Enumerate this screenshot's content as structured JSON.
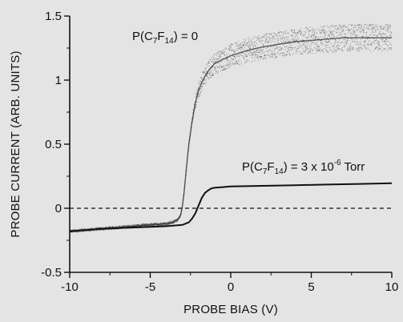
{
  "chart_data": {
    "type": "line",
    "xlabel": "PROBE BIAS (V)",
    "ylabel": "PROBE CURRENT (ARB. UNITS)",
    "xlim": [
      -10,
      10
    ],
    "ylim": [
      -0.5,
      1.5
    ],
    "x_ticks": [
      "-10",
      "-5",
      "0",
      "5",
      "10"
    ],
    "y_ticks": [
      "-0.5",
      "0",
      "0.5",
      "1",
      "1.5"
    ],
    "reference_line": {
      "y": 0,
      "style": "dashed"
    },
    "series": [
      {
        "name": "P(C7F14) = 0",
        "noisy": true,
        "x": [
          -10,
          -9,
          -8,
          -7,
          -6,
          -5,
          -4,
          -3.6,
          -3.3,
          -3.1,
          -3.0,
          -2.9,
          -2.8,
          -2.7,
          -2.6,
          -2.4,
          -2.2,
          -2.0,
          -1.8,
          -1.6,
          -1.4,
          -1.2,
          -1.0,
          -0.5,
          0,
          1,
          2,
          3,
          4,
          5,
          6,
          7,
          8,
          9,
          10
        ],
        "y": [
          -0.18,
          -0.17,
          -0.16,
          -0.15,
          -0.14,
          -0.13,
          -0.12,
          -0.11,
          -0.09,
          -0.05,
          0.02,
          0.12,
          0.25,
          0.38,
          0.5,
          0.68,
          0.82,
          0.92,
          0.98,
          1.03,
          1.07,
          1.1,
          1.13,
          1.16,
          1.19,
          1.23,
          1.26,
          1.28,
          1.3,
          1.31,
          1.32,
          1.33,
          1.33,
          1.33,
          1.33
        ]
      },
      {
        "name": "P(C7F14) = 3 x 10-6 Torr",
        "noisy": false,
        "x": [
          -10,
          -9,
          -8,
          -7,
          -6,
          -5,
          -4,
          -3,
          -2.6,
          -2.4,
          -2.2,
          -2.0,
          -1.8,
          -1.6,
          -1.4,
          -1.2,
          -1.0,
          -0.5,
          0,
          2,
          4,
          6,
          8,
          10
        ],
        "y": [
          -0.18,
          -0.17,
          -0.16,
          -0.155,
          -0.15,
          -0.145,
          -0.14,
          -0.13,
          -0.11,
          -0.08,
          -0.04,
          0.02,
          0.08,
          0.12,
          0.14,
          0.155,
          0.16,
          0.165,
          0.17,
          0.175,
          0.18,
          0.185,
          0.19,
          0.195
        ]
      }
    ],
    "annotations": {
      "a1": {
        "p1": "P(C",
        "sub1": "7",
        "p2": "F",
        "sub2": "14",
        "p3": ") = 0"
      },
      "a2": {
        "p1": "P(C",
        "sub1": "7",
        "p2": "F",
        "sub2": "14",
        "p3": ") = 3 x 10",
        "sup": "-6",
        "p4": " Torr"
      }
    }
  }
}
